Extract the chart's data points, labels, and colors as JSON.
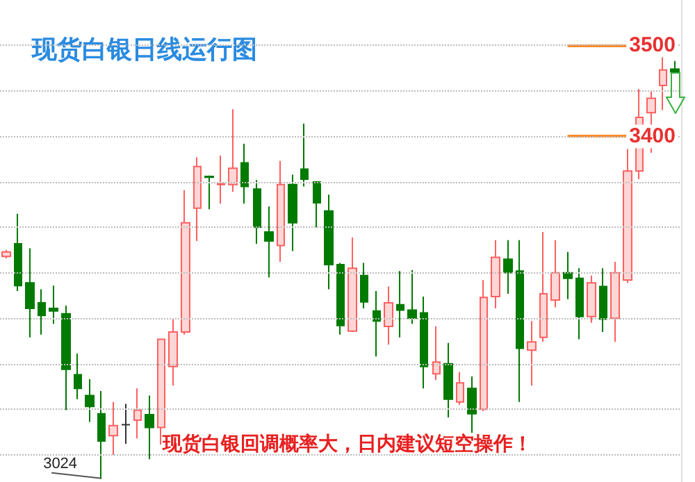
{
  "chart_data": {
    "type": "candlestick",
    "title": "现货白银日线运行图",
    "annotations": [
      "现货白银回调概率大，日内建议短空操作！",
      "3024"
    ],
    "categories": [
      null,
      null,
      null,
      null,
      null,
      null,
      null,
      null,
      null,
      null,
      null,
      null,
      null,
      null,
      null,
      null,
      null,
      null,
      null,
      null,
      null,
      null,
      null,
      null,
      null,
      null,
      null,
      null,
      null,
      null,
      null,
      null,
      null,
      null,
      null,
      null,
      null,
      null,
      null,
      null,
      null,
      null,
      null,
      null,
      null,
      null,
      null,
      null,
      null,
      null,
      null,
      null,
      null,
      null,
      null,
      null,
      null
    ],
    "ohlc": [
      [
        3268,
        3275,
        3266,
        3273
      ],
      [
        3282,
        3315,
        3230,
        3236
      ],
      [
        3239,
        3277,
        3179,
        3211
      ],
      [
        3217,
        3232,
        3182,
        3203
      ],
      [
        3211,
        3236,
        3194,
        3208
      ],
      [
        3205,
        3214,
        3099,
        3144
      ],
      [
        3138,
        3161,
        3111,
        3123
      ],
      [
        3115,
        3133,
        3086,
        3103
      ],
      [
        3095,
        3120,
        3024,
        3065
      ],
      [
        3071,
        3108,
        3050,
        3082
      ],
      [
        3083,
        3106,
        3062,
        3083
      ],
      [
        3088,
        3123,
        3068,
        3099
      ],
      [
        3094,
        3115,
        3045,
        3080
      ],
      [
        3080,
        3177,
        3061,
        3177
      ],
      [
        3147,
        3200,
        3126,
        3185
      ],
      [
        3185,
        3341,
        3182,
        3305
      ],
      [
        3321,
        3377,
        3285,
        3367
      ],
      [
        3356,
        3357,
        3320,
        3355
      ],
      [
        3347,
        3379,
        3326,
        3348
      ],
      [
        3347,
        3430,
        3339,
        3365
      ],
      [
        3371,
        3392,
        3326,
        3345
      ],
      [
        3342,
        3352,
        3282,
        3300
      ],
      [
        3295,
        3323,
        3245,
        3285
      ],
      [
        3280,
        3373,
        3262,
        3347
      ],
      [
        3347,
        3358,
        3274,
        3305
      ],
      [
        3364,
        3414,
        3345,
        3353
      ],
      [
        3350,
        3350,
        3300,
        3327
      ],
      [
        3318,
        3336,
        3232,
        3259
      ],
      [
        3259,
        3261,
        3182,
        3192
      ],
      [
        3186,
        3289,
        3185,
        3255
      ],
      [
        3247,
        3261,
        3211,
        3218
      ],
      [
        3208,
        3230,
        3158,
        3197
      ],
      [
        3191,
        3235,
        3171,
        3217
      ],
      [
        3215,
        3252,
        3179,
        3209
      ],
      [
        3209,
        3253,
        3194,
        3200
      ],
      [
        3206,
        3224,
        3123,
        3147
      ],
      [
        3139,
        3191,
        3132,
        3152
      ],
      [
        3150,
        3173,
        3091,
        3111
      ],
      [
        3108,
        3141,
        3105,
        3129
      ],
      [
        3123,
        3136,
        3074,
        3095
      ],
      [
        3100,
        3242,
        3098,
        3223
      ],
      [
        3224,
        3286,
        3211,
        3267
      ],
      [
        3265,
        3286,
        3227,
        3250
      ],
      [
        3252,
        3286,
        3108,
        3167
      ],
      [
        3165,
        3197,
        3126,
        3174
      ],
      [
        3179,
        3295,
        3174,
        3227
      ],
      [
        3220,
        3286,
        3212,
        3250
      ],
      [
        3250,
        3273,
        3221,
        3244
      ],
      [
        3244,
        3255,
        3177,
        3202
      ],
      [
        3202,
        3247,
        3195,
        3239
      ],
      [
        3235,
        3255,
        3185,
        3199
      ],
      [
        3200,
        3262,
        3174,
        3250
      ],
      [
        3242,
        3386,
        3239,
        3362
      ],
      [
        3362,
        3452,
        3353,
        3421
      ],
      [
        3426,
        3450,
        3382,
        3442
      ],
      [
        3456,
        3489,
        3429,
        3473
      ],
      [
        3474,
        3483,
        3469,
        3471
      ]
    ],
    "colors": [
      "#ff6060",
      "#007a00",
      "#007a00",
      "#007a00",
      "#007a00",
      "#007a00",
      "#007a00",
      "#007a00",
      "#007a00",
      "#ff6060",
      "#333333",
      "#ff6060",
      "#007a00",
      "#ff6060",
      "#ff6060",
      "#ff6060",
      "#ff6060",
      "#007a00",
      "#ff6060",
      "#ff6060",
      "#007a00",
      "#007a00",
      "#007a00",
      "#ff6060",
      "#007a00",
      "#007a00",
      "#007a00",
      "#007a00",
      "#007a00",
      "#ff6060",
      "#007a00",
      "#007a00",
      "#ff6060",
      "#007a00",
      "#007a00",
      "#007a00",
      "#ff6060",
      "#007a00",
      "#ff6060",
      "#007a00",
      "#ff6060",
      "#ff6060",
      "#007a00",
      "#007a00",
      "#ff6060",
      "#ff6060",
      "#ff6060",
      "#007a00",
      "#007a00",
      "#ff6060",
      "#007a00",
      "#ff6060",
      "#ff6060",
      "#ff6060",
      "#ff6060",
      "#ff6060",
      "#007a00"
    ],
    "ylim": [
      3020,
      3550
    ],
    "yticks": [
      {
        "value": 3050,
        "label": null
      },
      {
        "value": 3100,
        "label": null
      },
      {
        "value": 3150,
        "label": null
      },
      {
        "value": 3200,
        "label": null
      },
      {
        "value": 3250,
        "label": null
      },
      {
        "value": 3300,
        "label": null
      },
      {
        "value": 3350,
        "label": null
      },
      3400,
      {
        "value": 3450,
        "label": null
      },
      3500
    ],
    "grid": "y",
    "tick_labels": "y",
    "ref_lines": [
      {
        "axis": "y",
        "value": 3500,
        "color": "#ff8a2a"
      },
      {
        "axis": "y",
        "value": 3400,
        "color": "#ff8a2a"
      }
    ]
  }
}
